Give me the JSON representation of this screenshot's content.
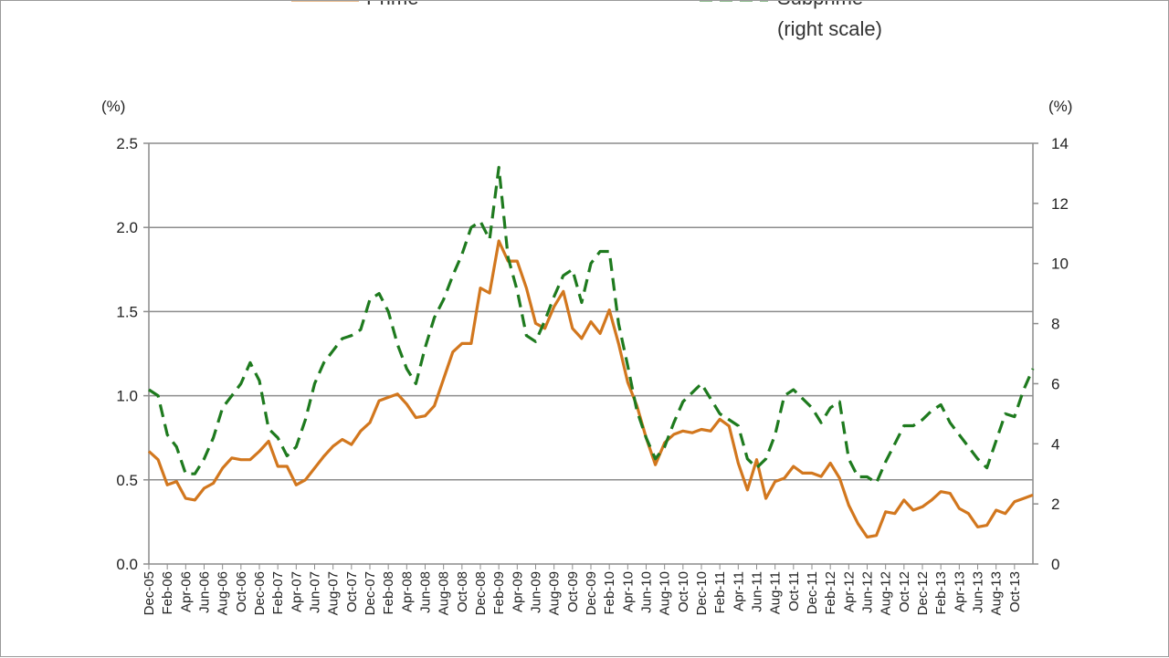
{
  "chart_data": {
    "type": "line",
    "legend": [
      "Prime",
      "Subprime",
      "(right scale)"
    ],
    "yunit_left": "(%)",
    "yunit_right": "(%)",
    "ylim_left": [
      0,
      2.5
    ],
    "ylim_right": [
      0,
      14
    ],
    "yticks_left": [
      "0.0",
      "0.5",
      "1.0",
      "1.5",
      "2.0",
      "2.5"
    ],
    "yticks_right": [
      "0",
      "2",
      "4",
      "6",
      "8",
      "10",
      "12",
      "14"
    ],
    "grid": true,
    "colors": {
      "prime": "#D2771E",
      "subprime": "#1E7A1E",
      "grid": "#8c8c8c"
    },
    "xtick_labels": [
      "Dec-05",
      "Feb-06",
      "Apr-06",
      "Jun-06",
      "Aug-06",
      "Oct-06",
      "Dec-06",
      "Feb-07",
      "Apr-07",
      "Jun-07",
      "Aug-07",
      "Oct-07",
      "Dec-07",
      "Feb-08",
      "Apr-08",
      "Jun-08",
      "Aug-08",
      "Oct-08",
      "Dec-08",
      "Feb-09",
      "Apr-09",
      "Jun-09",
      "Aug-09",
      "Oct-09",
      "Dec-09",
      "Feb-10",
      "Apr-10",
      "Jun-10",
      "Aug-10",
      "Oct-10",
      "Dec-10",
      "Feb-11",
      "Apr-11",
      "Jun-11",
      "Aug-11",
      "Oct-11",
      "Dec-11",
      "Feb-12",
      "Apr-12",
      "Jun-12",
      "Aug-12",
      "Oct-12",
      "Dec-12",
      "Feb-13",
      "Apr-13",
      "Jun-13",
      "Aug-13",
      "Oct-13"
    ],
    "series": [
      {
        "name": "Prime",
        "axis": "left",
        "style": "solid",
        "values": [
          0.67,
          0.62,
          0.47,
          0.49,
          0.39,
          0.38,
          0.45,
          0.48,
          0.57,
          0.63,
          0.62,
          0.62,
          0.67,
          0.73,
          0.58,
          0.58,
          0.47,
          0.5,
          0.57,
          0.64,
          0.7,
          0.74,
          0.71,
          0.79,
          0.84,
          0.97,
          0.99,
          1.01,
          0.95,
          0.87,
          0.88,
          0.94,
          1.1,
          1.26,
          1.31,
          1.31,
          1.64,
          1.61,
          1.92,
          1.8,
          1.8,
          1.64,
          1.43,
          1.4,
          1.53,
          1.62,
          1.4,
          1.34,
          1.44,
          1.37,
          1.51,
          1.31,
          1.08,
          0.94,
          0.75,
          0.59,
          0.72,
          0.77,
          0.79,
          0.78,
          0.8,
          0.79,
          0.86,
          0.82,
          0.6,
          0.44,
          0.62,
          0.39,
          0.49,
          0.51,
          0.58,
          0.54,
          0.54,
          0.52,
          0.6,
          0.51,
          0.35,
          0.24,
          0.16,
          0.17,
          0.31,
          0.3,
          0.38,
          0.32,
          0.34,
          0.38,
          0.43,
          0.42,
          0.33,
          0.3,
          0.22,
          0.23,
          0.32,
          0.3,
          0.37,
          0.39,
          0.41
        ]
      },
      {
        "name": "Subprime",
        "axis": "right",
        "style": "dashed",
        "values": [
          5.8,
          5.6,
          4.3,
          3.9,
          3.0,
          3.0,
          3.5,
          4.2,
          5.2,
          5.6,
          6.0,
          6.7,
          6.1,
          4.5,
          4.2,
          3.6,
          3.9,
          4.8,
          6.0,
          6.7,
          7.1,
          7.5,
          7.6,
          7.8,
          8.8,
          9.0,
          8.4,
          7.3,
          6.5,
          6.0,
          7.2,
          8.2,
          8.8,
          9.6,
          10.3,
          11.2,
          11.4,
          10.8,
          13.2,
          10.2,
          9.1,
          7.6,
          7.4,
          8.1,
          8.9,
          9.6,
          9.8,
          8.7,
          10.0,
          10.4,
          10.4,
          8.0,
          6.6,
          5.1,
          4.2,
          3.5,
          3.9,
          4.7,
          5.4,
          5.7,
          6.0,
          5.5,
          5.0,
          4.8,
          4.6,
          3.5,
          3.2,
          3.5,
          4.3,
          5.6,
          5.8,
          5.5,
          5.2,
          4.7,
          5.2,
          5.4,
          3.5,
          2.9,
          2.9,
          2.7,
          3.4,
          4.0,
          4.6,
          4.6,
          4.8,
          5.1,
          5.3,
          4.7,
          4.3,
          3.9,
          3.5,
          3.2,
          4.1,
          5.0,
          4.9,
          5.8,
          6.5
        ]
      }
    ]
  }
}
